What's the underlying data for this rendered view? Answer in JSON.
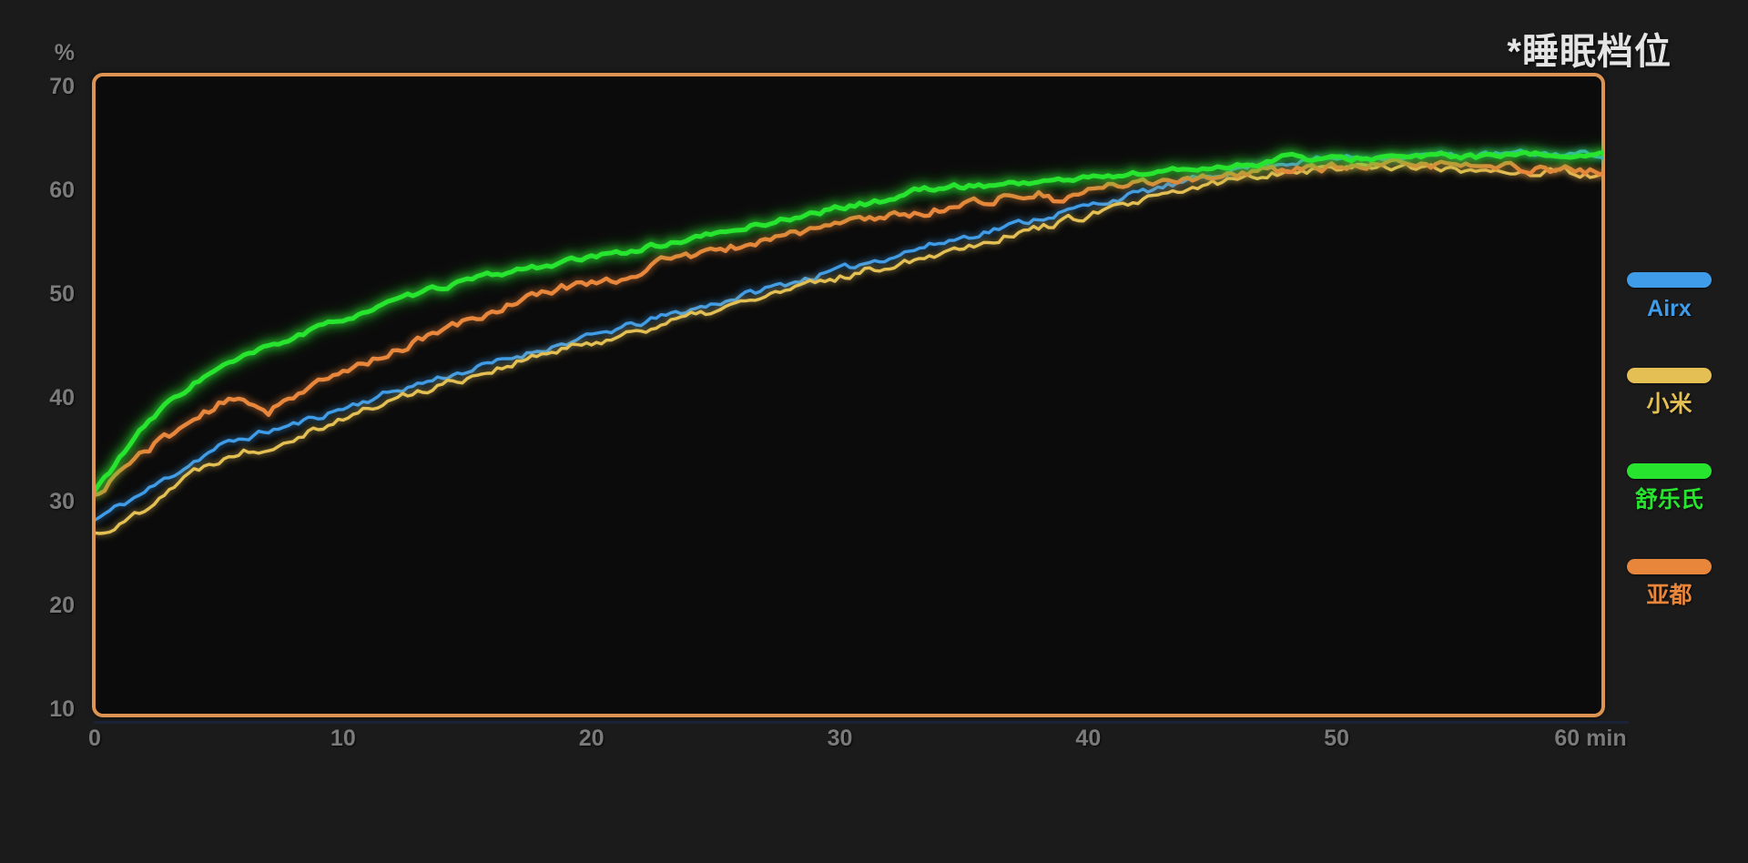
{
  "title": "*睡眠档位",
  "frame_color": "#dd9351",
  "background_color": "#1b1b1b",
  "plot_background_color": "#0b0b0b",
  "tick_color": "#7b7b7b",
  "chart_data": {
    "type": "line",
    "title": "*睡眠档位",
    "y_unit": "%",
    "xlabel": "min",
    "ylabel": "%",
    "xlim": [
      0,
      61
    ],
    "ylim": [
      10,
      70
    ],
    "grid": false,
    "legend_position": "right-outside",
    "x_ticks": {
      "values": [
        0,
        10,
        20,
        30,
        40,
        50,
        60
      ],
      "labels": [
        "0",
        "10",
        "20",
        "30",
        "40",
        "50",
        "60 min"
      ]
    },
    "y_ticks": [
      70,
      60,
      50,
      40,
      30,
      20,
      10
    ],
    "x_step_min": 1,
    "x_start": 0,
    "series": [
      {
        "name": "Airx",
        "color": "#3f9ce8",
        "width": 3.4,
        "glow": 0.5,
        "z": 1,
        "noise": 0.28,
        "seed": 11,
        "values": [
          28.2,
          29.6,
          30.9,
          32.4,
          33.9,
          35.3,
          36.1,
          36.8,
          37.4,
          38.2,
          39.0,
          39.8,
          40.6,
          41.3,
          42.0,
          42.6,
          43.3,
          44.0,
          44.7,
          45.3,
          45.9,
          46.6,
          47.2,
          47.9,
          48.5,
          49.1,
          49.8,
          50.5,
          51.1,
          51.7,
          52.3,
          53.0,
          53.6,
          54.3,
          54.9,
          55.5,
          56.1,
          56.7,
          57.3,
          57.9,
          58.5,
          59.1,
          59.7,
          60.3,
          60.8,
          61.5,
          62.1,
          62.5,
          62.7,
          62.9,
          63.1,
          63.2,
          63.3,
          63.3,
          63.4,
          63.4,
          63.4,
          63.5,
          63.5,
          63.5,
          63.5,
          63.5
        ]
      },
      {
        "name": "小米",
        "color": "#e4c054",
        "width": 3.4,
        "glow": 0.45,
        "z": 2,
        "noise": 0.33,
        "seed": 22,
        "values": [
          26.9,
          27.7,
          29.4,
          31.3,
          32.9,
          34.1,
          34.9,
          35.2,
          36.3,
          37.2,
          38.0,
          38.9,
          39.8,
          40.6,
          41.3,
          42.0,
          42.7,
          43.4,
          44.1,
          44.7,
          45.3,
          45.9,
          46.6,
          47.2,
          47.8,
          48.4,
          49.1,
          49.8,
          50.4,
          51.0,
          51.6,
          52.2,
          52.8,
          53.4,
          54.0,
          54.6,
          55.2,
          55.8,
          56.4,
          57.0,
          57.6,
          58.2,
          58.8,
          59.4,
          60.0,
          60.6,
          61.1,
          61.5,
          61.9,
          62.0,
          62.2,
          62.3,
          62.4,
          62.3,
          62.0,
          61.9,
          62.1,
          61.9,
          61.6,
          61.8,
          61.5,
          61.3
        ]
      },
      {
        "name": "舒乐氏",
        "color": "#27e52e",
        "width": 5,
        "glow": 1,
        "z": 4,
        "noise": 0.22,
        "seed": 33,
        "values": [
          31.0,
          34.2,
          37.2,
          39.6,
          41.4,
          42.8,
          43.9,
          44.9,
          45.8,
          46.7,
          47.6,
          48.4,
          49.2,
          50.0,
          50.7,
          51.3,
          51.8,
          52.3,
          52.7,
          53.1,
          53.5,
          53.9,
          54.4,
          54.8,
          55.3,
          55.8,
          56.3,
          56.8,
          57.3,
          57.8,
          58.3,
          58.7,
          59.1,
          60.0,
          60.2,
          60.4,
          60.5,
          60.7,
          60.8,
          61.0,
          61.2,
          61.4,
          61.6,
          61.8,
          62.0,
          62.2,
          62.4,
          62.6,
          63.4,
          62.9,
          63.0,
          63.1,
          63.2,
          63.2,
          63.3,
          63.3,
          63.2,
          63.3,
          63.4,
          63.4,
          63.4,
          63.4
        ]
      },
      {
        "name": "亚都",
        "color": "#e8863c",
        "width": 4.4,
        "glow": 0.6,
        "z": 3,
        "noise": 0.35,
        "seed": 44,
        "values": [
          30.4,
          32.9,
          34.9,
          36.4,
          37.9,
          39.3,
          39.9,
          38.8,
          40.3,
          41.3,
          42.4,
          43.5,
          44.5,
          45.4,
          46.5,
          47.4,
          48.3,
          49.3,
          50.1,
          50.7,
          51.2,
          51.4,
          52.2,
          53.4,
          53.7,
          54.1,
          54.6,
          55.3,
          55.8,
          56.3,
          56.7,
          57.2,
          57.7,
          57.6,
          58.2,
          58.7,
          59.1,
          59.4,
          59.6,
          58.7,
          60.0,
          60.4,
          60.7,
          61.0,
          61.2,
          61.4,
          61.6,
          61.8,
          62.0,
          62.1,
          62.2,
          62.3,
          62.4,
          62.4,
          62.5,
          62.4,
          62.3,
          62.2,
          62.1,
          62.0,
          61.9,
          61.8
        ]
      }
    ]
  }
}
